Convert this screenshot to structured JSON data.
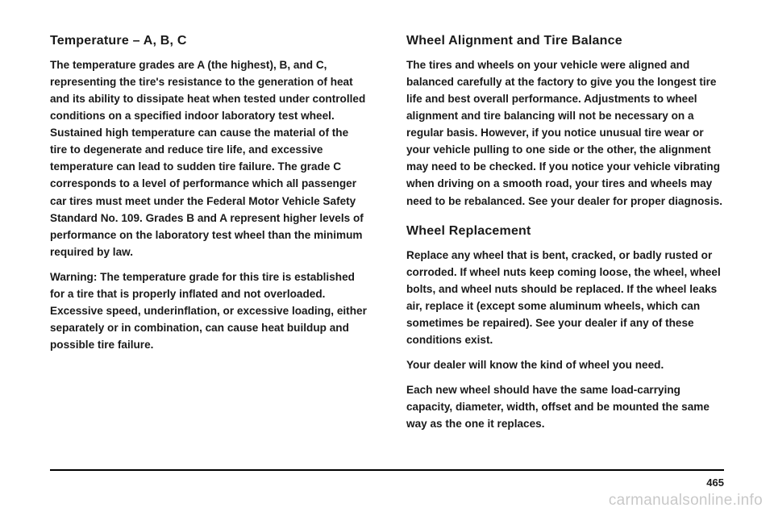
{
  "left": {
    "heading": "Temperature – A, B, C",
    "p1": "The temperature grades are A (the highest), B, and C, representing the tire's resistance to the generation of heat and its ability to dissipate heat when tested under controlled conditions on a specified indoor laboratory test wheel. Sustained high temperature can cause the material of the tire to degenerate and reduce tire life, and excessive temperature can lead to sudden tire failure. The grade C corresponds to a level of performance which all passenger car tires must meet under the Federal Motor Vehicle Safety Standard No. 109. Grades B and A represent higher levels of performance on the laboratory test wheel than the minimum required by law.",
    "p2": "Warning: The temperature grade for this tire is established for a tire that is properly inflated and not overloaded. Excessive speed, underinflation, or excessive loading, either separately or in combination, can cause heat buildup and possible tire failure."
  },
  "right": {
    "heading1": "Wheel Alignment and Tire Balance",
    "p1": "The tires and wheels on your vehicle were aligned and balanced carefully at the factory to give you the longest tire life and best overall performance. Adjustments to wheel alignment and tire balancing will not be necessary on a regular basis. However, if you notice unusual tire wear or your vehicle pulling to one side or the other, the alignment may need to be checked. If you notice your vehicle vibrating when driving on a smooth road, your tires and wheels may need to be rebalanced. See your dealer for proper diagnosis.",
    "heading2": "Wheel Replacement",
    "p2": "Replace any wheel that is bent, cracked, or badly rusted or corroded. If wheel nuts keep coming loose, the wheel, wheel bolts, and wheel nuts should be replaced. If the wheel leaks air, replace it (except some aluminum wheels, which can sometimes be repaired). See your dealer if any of these conditions exist.",
    "p3": "Your dealer will know the kind of wheel you need.",
    "p4": "Each new wheel should have the same load-carrying capacity, diameter, width, offset and be mounted the same way as the one it replaces."
  },
  "page_number": "465",
  "watermark": "carmanualsonline.info"
}
